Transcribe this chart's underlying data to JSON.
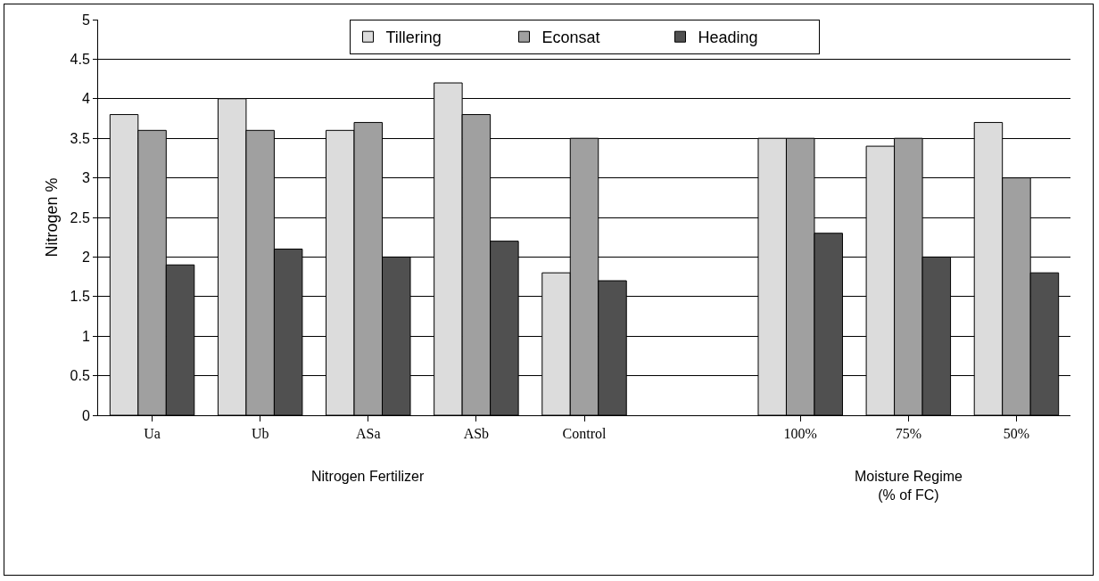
{
  "chart_data": {
    "type": "bar",
    "categories": [
      "Ua",
      "Ub",
      "ASa",
      "ASb",
      "Control",
      null,
      "100%",
      "75%",
      "50%"
    ],
    "series": [
      {
        "name": "Tillering",
        "color": "#dcdcdc",
        "values": [
          3.8,
          4.0,
          3.6,
          4.2,
          1.8,
          null,
          3.5,
          3.4,
          3.7
        ]
      },
      {
        "name": "Econsat",
        "color": "#a0a0a0",
        "values": [
          3.6,
          3.6,
          3.7,
          3.8,
          3.5,
          null,
          3.5,
          3.5,
          3.0
        ]
      },
      {
        "name": "Heading",
        "color": "#505050",
        "values": [
          1.9,
          2.1,
          2.0,
          2.2,
          1.7,
          null,
          2.3,
          2.0,
          1.8
        ]
      }
    ],
    "ylabel": "Nitrogen %",
    "ylim": [
      0,
      5
    ],
    "yticks": [
      0,
      0.5,
      1,
      1.5,
      2,
      2.5,
      3,
      3.5,
      4,
      4.5,
      5
    ],
    "grid": "y",
    "legend": "top",
    "annotations": [
      "Nitrogen Fertilizer",
      "Moisture Regime\n(% of FC)"
    ]
  }
}
